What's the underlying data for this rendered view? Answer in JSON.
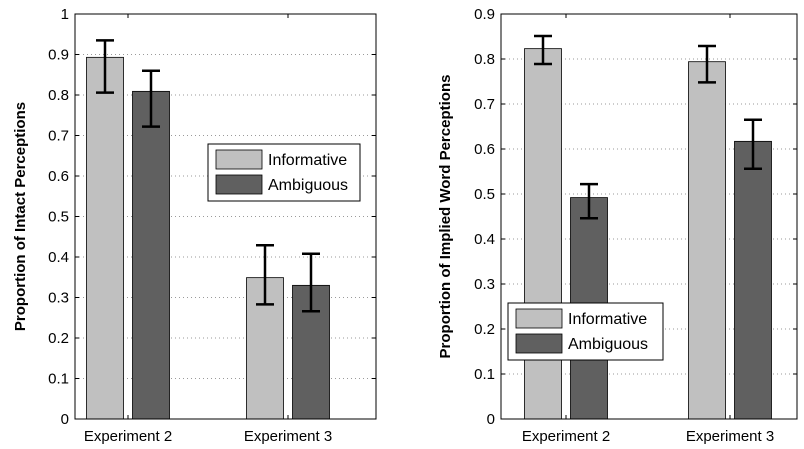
{
  "colors": {
    "informative": "#c0c0c0",
    "ambiguous": "#606060",
    "axis": "#000000",
    "grid": "#9a9a9a",
    "error_bar": "#000000"
  },
  "chart_data": [
    {
      "type": "bar",
      "categories": [
        "Experiment 2",
        "Experiment 3"
      ],
      "series": [
        {
          "name": "Informative",
          "values": [
            0.893,
            0.349
          ],
          "err_low": [
            0.806,
            0.283
          ],
          "err_high": [
            0.935,
            0.429
          ]
        },
        {
          "name": "Ambiguous",
          "values": [
            0.809,
            0.33
          ],
          "err_low": [
            0.722,
            0.266
          ],
          "err_high": [
            0.86,
            0.408
          ]
        }
      ],
      "ylabel": "Proportion of Intact Perceptions",
      "ylim": [
        0,
        1
      ],
      "yticks": [
        "0",
        "0.1",
        "0.2",
        "0.3",
        "0.4",
        "0.5",
        "0.6",
        "0.7",
        "0.8",
        "0.9",
        "1"
      ],
      "grid": "horizontal dotted",
      "legend_position": "center-right"
    },
    {
      "type": "bar",
      "categories": [
        "Experiment 2",
        "Experiment 3"
      ],
      "series": [
        {
          "name": "Informative",
          "values": [
            0.823,
            0.794
          ],
          "err_low": [
            0.789,
            0.748
          ],
          "err_high": [
            0.851,
            0.829
          ]
        },
        {
          "name": "Ambiguous",
          "values": [
            0.492,
            0.617
          ],
          "err_low": [
            0.446,
            0.556
          ],
          "err_high": [
            0.522,
            0.665
          ]
        }
      ],
      "ylabel": "Proportion of Implied Word Perceptions",
      "ylim": [
        0,
        0.9
      ],
      "yticks": [
        "0",
        "0.1",
        "0.2",
        "0.3",
        "0.4",
        "0.5",
        "0.6",
        "0.7",
        "0.8",
        "0.9"
      ],
      "grid": "horizontal dotted",
      "legend_position": "lower-left"
    }
  ]
}
